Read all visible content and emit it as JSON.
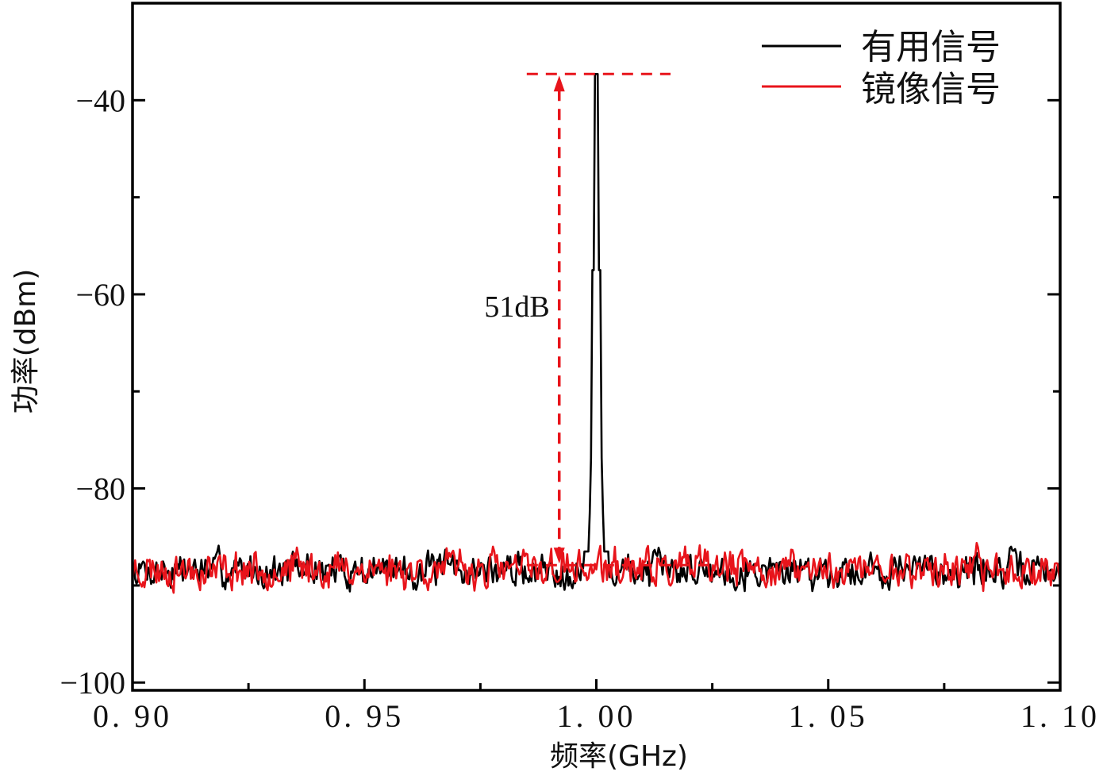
{
  "chart_data": {
    "type": "line",
    "title": "",
    "xlabel": "频率(GHz)",
    "ylabel": "功率(dBm)",
    "xlim": [
      0.9,
      1.1
    ],
    "ylim": [
      -100.8,
      -30
    ],
    "x_ticks": [
      0.9,
      0.95,
      1.0,
      1.05,
      1.1
    ],
    "x_tick_labels": [
      "0.90",
      "0.95",
      "1.00",
      "1.05",
      "1.10"
    ],
    "x_minor_ticks": [
      0.925,
      0.975,
      1.025,
      1.075
    ],
    "y_ticks": [
      -40,
      -60,
      -80,
      -100
    ],
    "y_tick_labels": [
      "-40",
      "-60",
      "-80",
      "-100"
    ],
    "y_minor_ticks": [
      -50,
      -70,
      -90
    ],
    "grid": false,
    "legend_position": "upper right",
    "series": [
      {
        "name": "有用信号",
        "color": "#000000",
        "noise_floor_dbm": -88.4,
        "noise_amplitude_db": 1.6,
        "peak": {
          "x": 1.0,
          "y": -37.3
        },
        "seed": 7
      },
      {
        "name": "镜像信号",
        "color": "#e8141b",
        "noise_floor_dbm": -88.3,
        "noise_amplitude_db": 1.7,
        "seed": 23
      }
    ],
    "annotation": {
      "label": "51dB",
      "arrow_x": 0.992,
      "top_y": -37.3,
      "bottom_y": -87.9,
      "top_line_x": [
        0.985,
        1.016
      ],
      "bottom_line_x": [
        0.985,
        1.025
      ],
      "color": "#e8141b"
    }
  },
  "legend": {
    "items": [
      {
        "label": "有用信号",
        "color": "#000000"
      },
      {
        "label": "镜像信号",
        "color": "#e8141b"
      }
    ]
  }
}
